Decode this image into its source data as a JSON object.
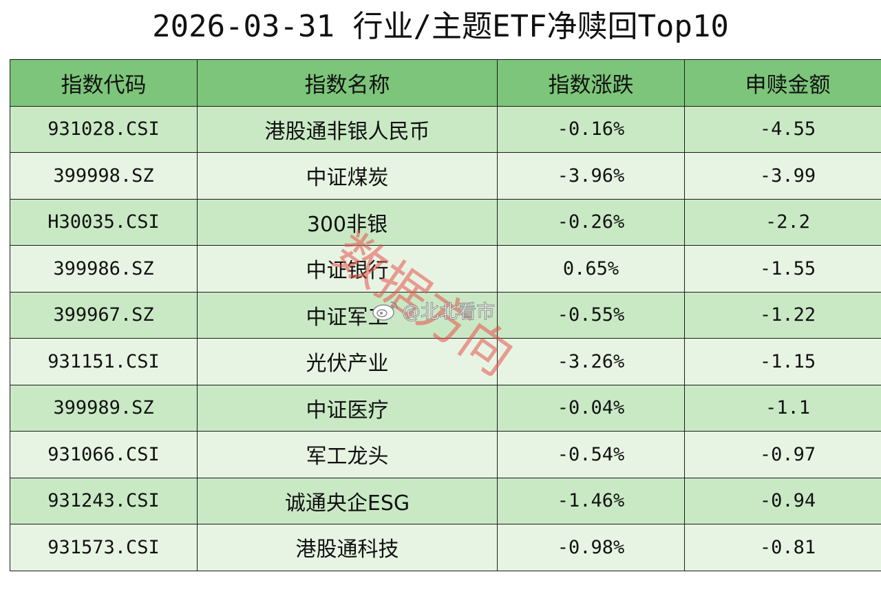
{
  "title": "2026-03-31 行业/主题ETF净赎回Top10",
  "table": {
    "headers": [
      "指数代码",
      "指数名称",
      "指数涨跌",
      "申赎金额"
    ],
    "rows": [
      {
        "code": "931028.CSI",
        "name": "港股通非银人民币",
        "change": "-0.16%",
        "amount": "-4.55"
      },
      {
        "code": "399998.SZ",
        "name": "中证煤炭",
        "change": "-3.96%",
        "amount": "-3.99"
      },
      {
        "code": "H30035.CSI",
        "name": "300非银",
        "change": "-0.26%",
        "amount": "-2.2"
      },
      {
        "code": "399986.SZ",
        "name": "中证银行",
        "change": "0.65%",
        "amount": "-1.55"
      },
      {
        "code": "399967.SZ",
        "name": "中证军工",
        "change": "-0.55%",
        "amount": "-1.22"
      },
      {
        "code": "931151.CSI",
        "name": "光伏产业",
        "change": "-3.26%",
        "amount": "-1.15"
      },
      {
        "code": "399989.SZ",
        "name": "中证医疗",
        "change": "-0.04%",
        "amount": "-1.1"
      },
      {
        "code": "931066.CSI",
        "name": "军工龙头",
        "change": "-0.54%",
        "amount": "-0.97"
      },
      {
        "code": "931243.CSI",
        "name": "诚通央企ESG",
        "change": "-1.46%",
        "amount": "-0.94"
      },
      {
        "code": "931573.CSI",
        "name": "港股通科技",
        "change": "-0.98%",
        "amount": "-0.81"
      }
    ]
  },
  "watermark": {
    "text": "数据方向",
    "weibo_handle": "@北北看市",
    "weibo_icon": "weibo-icon",
    "color": "#e8504a"
  },
  "colors": {
    "header_bg": "#7cc57a",
    "row_odd_bg": "#c9e9c5",
    "row_even_bg": "#e7f4e3",
    "border": "#1a1a1a"
  }
}
